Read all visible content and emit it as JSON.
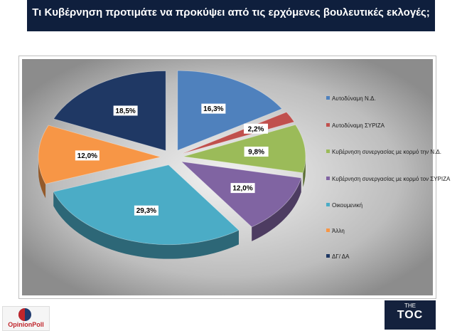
{
  "header": {
    "title": "Τι Κυβέρνηση προτιμάτε να προκύψει από τις ερχόμενες βουλευτικές εκλογές;"
  },
  "chart_data": {
    "type": "pie",
    "title": "Τι Κυβέρνηση προτιμάτε να προκύψει από τις ερχόμενες βουλευτικές εκλογές;",
    "legend_position": "right",
    "series": [
      {
        "name": "Αυτοδύναμη Ν.Δ.",
        "value": 16.3,
        "label": "16,3%",
        "color": "#4f81bd"
      },
      {
        "name": "Αυτοδύναμη ΣΥΡΙΖΑ",
        "value": 2.2,
        "label": "2,2%",
        "color": "#c0504d"
      },
      {
        "name": "Κυβέρνηση συνεργασίας με κορμό την Ν.Δ.",
        "value": 9.8,
        "label": "9,8%",
        "color": "#9bbb59"
      },
      {
        "name": "Κυβέρνηση συνεργασίας με κορμό τον ΣΥΡΙΖΑ",
        "value": 12.0,
        "label": "12,0%",
        "color": "#8064a2"
      },
      {
        "name": "Οικουμενική",
        "value": 29.3,
        "label": "29,3%",
        "color": "#4bacc6"
      },
      {
        "name": "Άλλη",
        "value": 12.0,
        "label": "12,0%",
        "color": "#f79646"
      },
      {
        "name": "ΔΓ/ ΔΑ",
        "value": 18.5,
        "label": "18,5%",
        "color": "#1f3864"
      }
    ]
  },
  "logos": {
    "left": "OpinionPoll",
    "right_small": "THE",
    "right_main": "TOC"
  }
}
